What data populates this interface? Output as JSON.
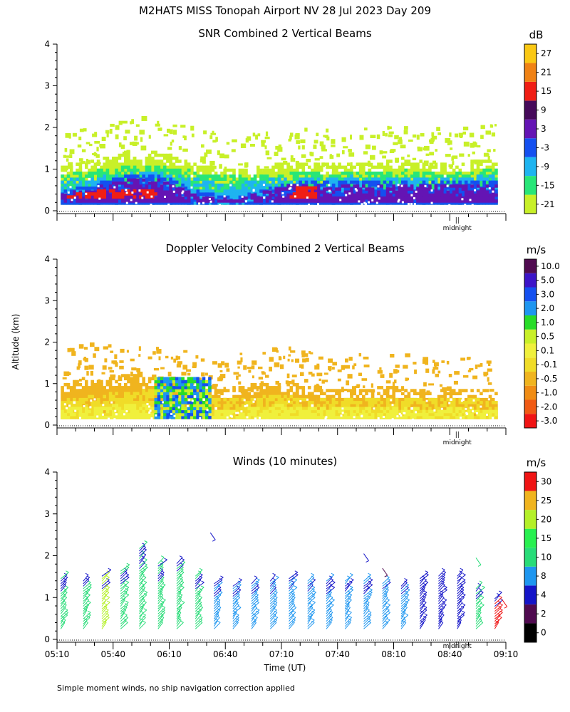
{
  "figure": {
    "title": "M2HATS MISS Tonopah Airport NV  28 Jul 2023 Day 209",
    "y_axis_label": "Altitude (km)",
    "x_axis_label": "Time (UT)",
    "footnote": "Simple moment winds, no ship navigation correction applied",
    "midnight_label": "midnight",
    "midnight_tick": "||"
  },
  "chart_data": [
    {
      "id": "snr",
      "type": "heatmap",
      "title": "SNR Combined 2 Vertical Beams",
      "ylabel": "Altitude (km)",
      "ylim": [
        0,
        4
      ],
      "yticks": [
        "0",
        "1",
        "2",
        "3",
        "4"
      ],
      "xlim_minutes": [
        310,
        550
      ],
      "colorbar": {
        "unit": "dB",
        "labels": [
          "-21",
          "-15",
          "-9",
          "-3",
          "3",
          "9",
          "15",
          "21",
          "27"
        ],
        "colors": [
          "#c8f028",
          "#28e678",
          "#1eb4f0",
          "#1450f0",
          "#6414b4",
          "#460a5a",
          "#f01e14",
          "#f08214",
          "#fac814"
        ]
      },
      "layers": [
        {
          "name": "outer",
          "color": "#c8f028",
          "base": 0.15,
          "top": [
            1.05,
            1.1,
            1.2,
            1.35,
            1.45,
            1.4,
            1.3,
            1.15,
            1.05,
            1.0,
            1.0,
            1.05,
            1.1,
            1.15,
            1.1,
            1.1,
            1.15,
            1.1,
            1.2,
            1.25,
            1.15,
            1.1,
            1.15,
            1.2,
            1.2
          ]
        },
        {
          "name": "green",
          "color": "#28e678",
          "base": 0.15,
          "top": [
            0.85,
            0.9,
            0.95,
            1.0,
            1.05,
            1.05,
            1.0,
            0.95,
            0.85,
            0.8,
            0.8,
            0.85,
            0.85,
            0.9,
            0.9,
            0.85,
            0.9,
            0.9,
            0.9,
            0.95,
            0.9,
            0.85,
            0.9,
            0.95,
            0.95
          ]
        },
        {
          "name": "cyan",
          "color": "#1eb4f0",
          "base": 0.15,
          "top": [
            0.7,
            0.75,
            0.8,
            0.85,
            0.9,
            0.9,
            0.85,
            0.75,
            0.7,
            0.65,
            0.65,
            0.7,
            0.75,
            0.75,
            0.75,
            0.75,
            0.8,
            0.75,
            0.75,
            0.8,
            0.75,
            0.75,
            0.75,
            0.8,
            0.8
          ]
        },
        {
          "name": "blue",
          "color": "#1450f0",
          "base": 0.15,
          "top": [
            0.45,
            0.55,
            0.65,
            0.75,
            0.85,
            0.85,
            0.75,
            0.55,
            0.4,
            0.35,
            0.35,
            0.45,
            0.6,
            0.65,
            0.7,
            0.65,
            0.7,
            0.7,
            0.65,
            0.7,
            0.7,
            0.7,
            0.7,
            0.7,
            0.7
          ]
        },
        {
          "name": "purple",
          "color": "#6414b4",
          "base": 0.2,
          "top": [
            0.35,
            0.45,
            0.55,
            0.65,
            0.75,
            0.75,
            0.65,
            0.45,
            0.3,
            0.3,
            0.3,
            0.4,
            0.55,
            0.6,
            0.6,
            0.55,
            0.6,
            0.6,
            0.55,
            0.6,
            0.6,
            0.6,
            0.6,
            0.6,
            0.6
          ]
        },
        {
          "name": "red",
          "color": "#f01e14",
          "base": 0.3,
          "top": [
            0.3,
            0.4,
            0.45,
            0.45,
            0.5,
            0.45,
            0.0,
            0.0,
            0.0,
            0.0,
            0.0,
            0.0,
            0.0,
            0.55,
            0.55,
            0.0,
            0.0,
            0.0,
            0.0,
            0.0,
            0.0,
            0.0,
            0.0,
            0.0,
            0.0
          ]
        }
      ]
    },
    {
      "id": "doppler",
      "type": "heatmap",
      "title": "Doppler Velocity Combined 2 Vertical Beams",
      "ylabel": "Altitude (km)",
      "ylim": [
        0,
        4
      ],
      "yticks": [
        "0",
        "1",
        "2",
        "3",
        "4"
      ],
      "xlim_minutes": [
        310,
        550
      ],
      "colorbar": {
        "unit": "m/s",
        "labels": [
          "-3.0",
          "-2.0",
          "-1.0",
          "-0.5",
          "-0.1",
          "0.1",
          "0.5",
          "1.0",
          "2.0",
          "3.0",
          "5.0",
          "10.0"
        ],
        "colors": [
          "#f01414",
          "#f05a14",
          "#f08c14",
          "#f0b41e",
          "#f0dc28",
          "#f0f03c",
          "#c8f028",
          "#28dc28",
          "#1e96f0",
          "#1450f0",
          "#3c14c8",
          "#500a50"
        ]
      },
      "layers": [
        {
          "name": "orange",
          "color": "#f0b41e",
          "base": 0.15,
          "top": [
            1.0,
            1.1,
            1.05,
            1.15,
            1.2,
            1.15,
            1.05,
            0.9,
            0.8,
            0.85,
            0.9,
            1.0,
            1.0,
            0.95,
            0.9,
            0.85,
            0.85,
            0.85,
            0.9,
            0.85,
            0.8,
            0.8,
            0.8,
            0.85,
            0.75
          ]
        },
        {
          "name": "yellow",
          "color": "#f0dc28",
          "base": 0.15,
          "top": [
            0.6,
            0.65,
            0.7,
            0.75,
            0.8,
            0.8,
            0.75,
            0.65,
            0.6,
            0.6,
            0.6,
            0.65,
            0.7,
            0.65,
            0.6,
            0.6,
            0.6,
            0.6,
            0.6,
            0.6,
            0.6,
            0.6,
            0.6,
            0.6,
            0.55
          ]
        },
        {
          "name": "lightyellow",
          "color": "#f0f03c",
          "base": 0.15,
          "top": [
            0.35,
            0.4,
            0.4,
            0.45,
            0.5,
            0.5,
            0.45,
            0.4,
            0.35,
            0.35,
            0.35,
            0.4,
            0.45,
            0.4,
            0.4,
            0.4,
            0.4,
            0.4,
            0.4,
            0.4,
            0.35,
            0.35,
            0.4,
            0.35,
            0.3
          ]
        }
      ],
      "updraft": [
        {
          "x_min": 362,
          "x_max": 392,
          "top": 1.2,
          "colors": [
            "#c8f028",
            "#28dc28",
            "#1e96f0",
            "#1450f0"
          ]
        }
      ]
    },
    {
      "id": "winds",
      "type": "scatter",
      "title": "Winds (10 minutes)",
      "ylabel": "Altitude (km)",
      "xlabel": "Time (UT)",
      "ylim": [
        0,
        4
      ],
      "yticks": [
        "0",
        "1",
        "2",
        "3",
        "4"
      ],
      "xlim_minutes": [
        310,
        550
      ],
      "xticks": [
        "05:10",
        "05:40",
        "06:10",
        "06:40",
        "07:10",
        "07:40",
        "08:10",
        "08:40",
        "09:10"
      ],
      "colorbar": {
        "unit": "m/s",
        "labels": [
          "0",
          "2",
          "4",
          "8",
          "10",
          "15",
          "20",
          "25",
          "30"
        ],
        "colors": [
          "#000000",
          "#500a50",
          "#1414c8",
          "#1e96f0",
          "#28dc78",
          "#28f050",
          "#b4f028",
          "#f0b41e",
          "#f01414"
        ]
      },
      "barb_times_minutes": [
        312,
        324,
        334,
        344,
        354,
        364,
        374,
        384,
        394,
        404,
        414,
        424,
        434,
        444,
        454,
        464,
        474,
        484,
        494,
        504,
        514,
        524,
        534,
        544
      ],
      "barb_tops_km": [
        1.5,
        1.45,
        1.55,
        1.65,
        2.2,
        1.85,
        1.85,
        1.55,
        1.35,
        1.3,
        1.35,
        1.4,
        1.5,
        1.45,
        1.45,
        1.45,
        1.4,
        1.35,
        1.3,
        1.5,
        1.55,
        1.55,
        1.25,
        1.0
      ],
      "barb_colors": [
        "#28dc78",
        "#28dc78",
        "#b4f028",
        "#28dc78",
        "#28dc78",
        "#28dc78",
        "#28dc78",
        "#28dc78",
        "#1e96f0",
        "#1e96f0",
        "#1e96f0",
        "#1e96f0",
        "#1e96f0",
        "#1e96f0",
        "#1e96f0",
        "#1e96f0",
        "#1e96f0",
        "#1e96f0",
        "#1e96f0",
        "#1414c8",
        "#1414c8",
        "#1414c8",
        "#28dc78",
        "#f01414"
      ],
      "sparse_barbs": [
        {
          "t": 392,
          "alt": 2.55,
          "color": "#1414c8"
        },
        {
          "t": 474,
          "alt": 2.05,
          "color": "#1414c8"
        },
        {
          "t": 484,
          "alt": 1.7,
          "color": "#500a50"
        },
        {
          "t": 534,
          "alt": 1.95,
          "color": "#28dc78"
        },
        {
          "t": 548,
          "alt": 0.95,
          "color": "#f01414"
        }
      ]
    }
  ]
}
